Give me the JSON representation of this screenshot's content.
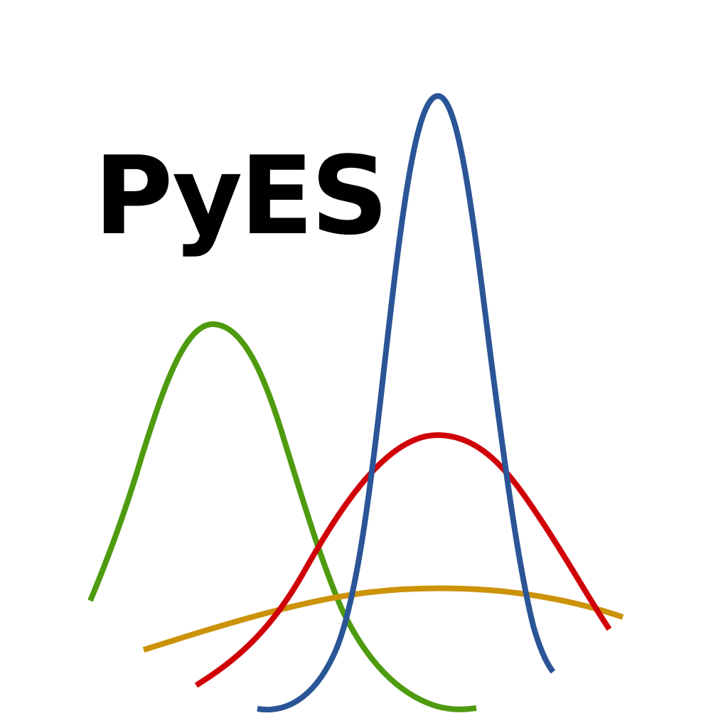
{
  "logo": {
    "title": "PyES"
  },
  "curves": [
    {
      "name": "green-curve",
      "color": "#4f9b0f"
    },
    {
      "name": "gold-curve",
      "color": "#cc9208"
    },
    {
      "name": "red-curve",
      "color": "#d00008"
    },
    {
      "name": "blue-curve",
      "color": "#2a5597"
    }
  ]
}
